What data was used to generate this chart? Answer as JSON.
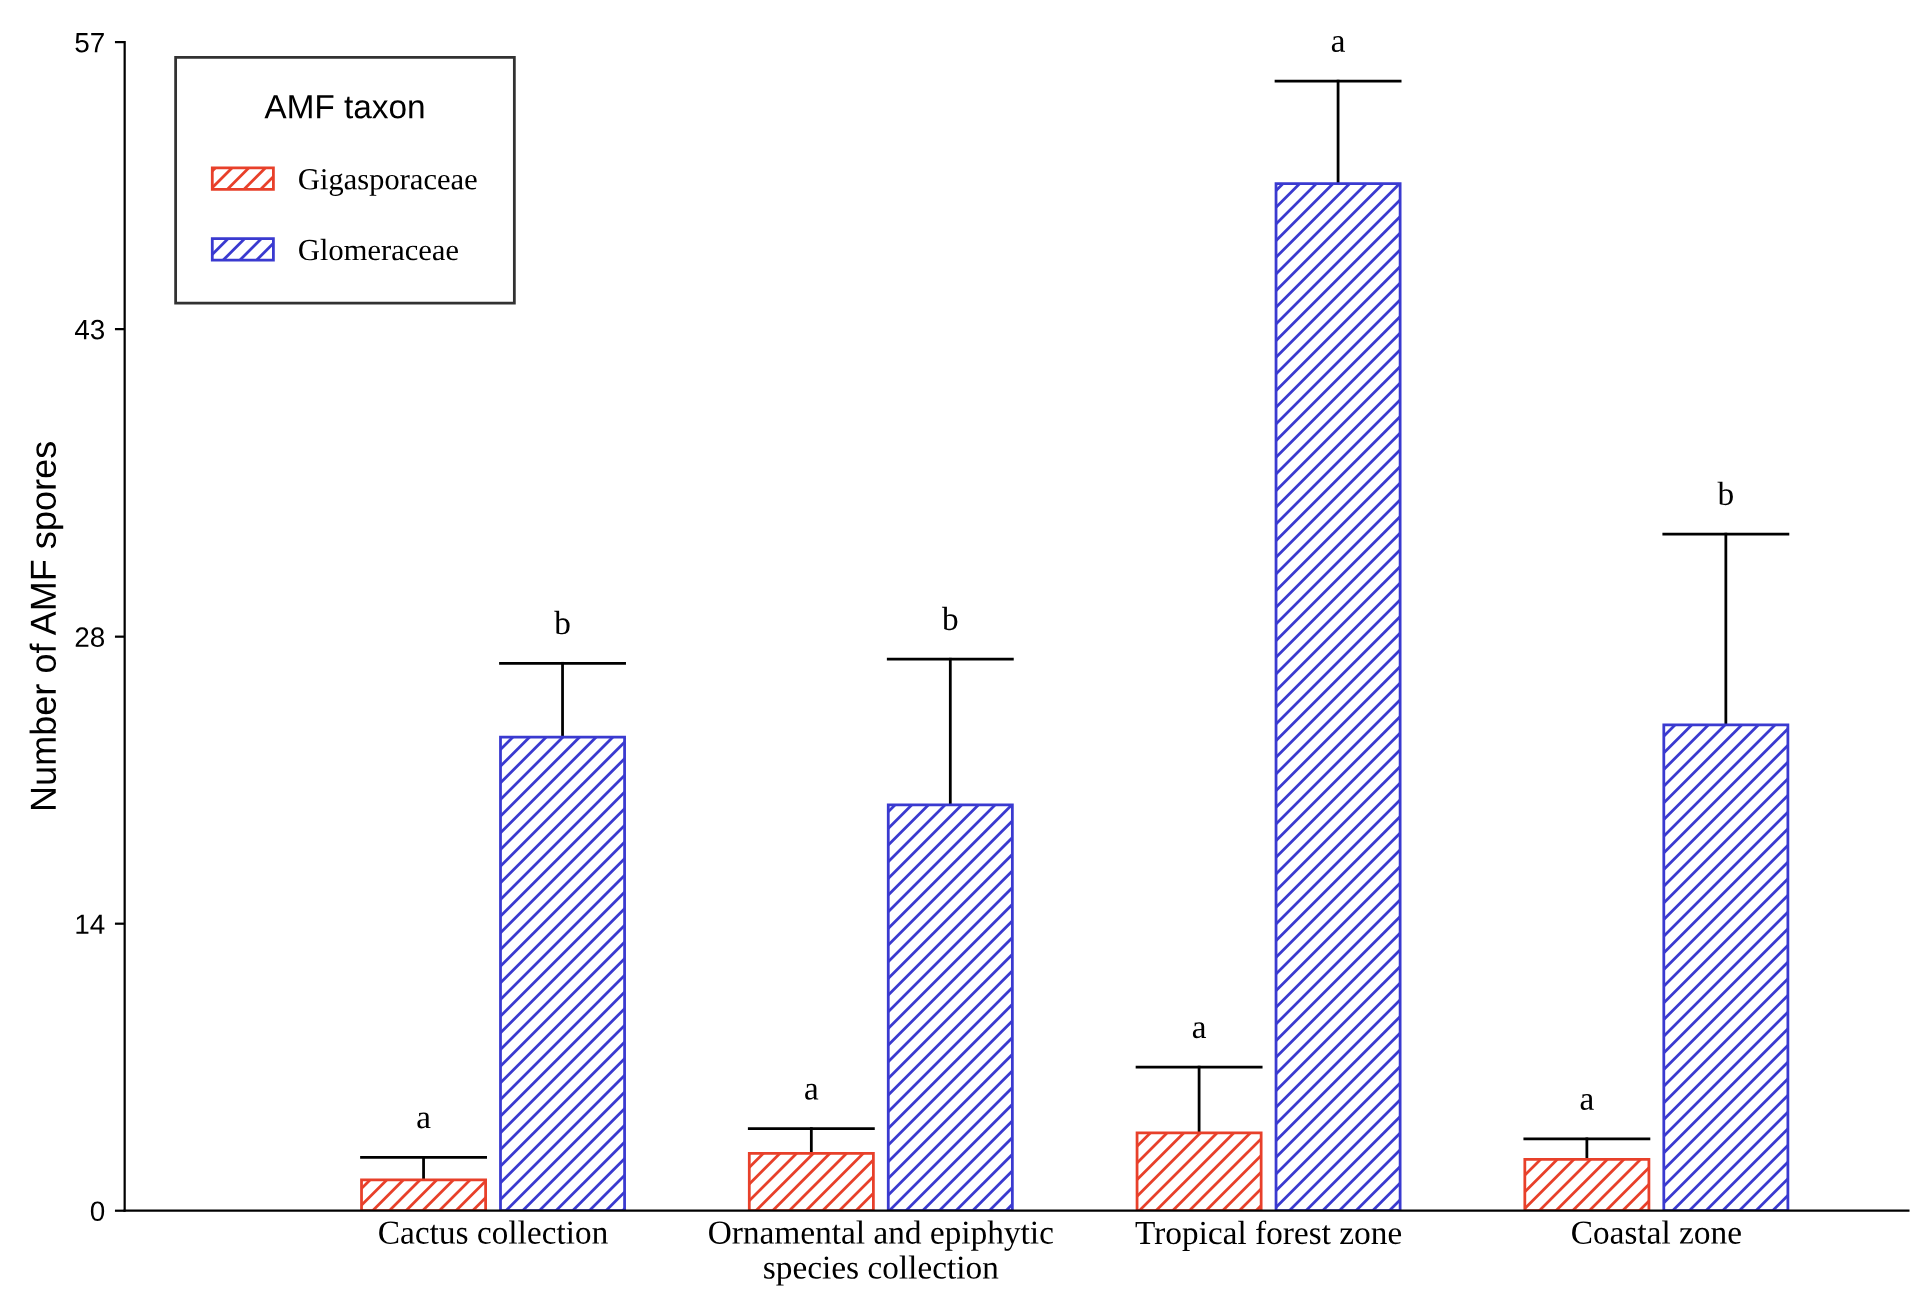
{
  "chart_data": {
    "type": "bar",
    "ylabel": "Number of AMF spores",
    "legend_title": "AMF taxon",
    "legend": "top left",
    "grid": false,
    "categories": [
      "Cactus collection",
      "Ornamental and epiphytic\nspecies collection",
      "Tropical forest zone",
      "Coastal zone"
    ],
    "series": [
      {
        "name": "Gigasporaceae",
        "color": "#e8402a",
        "values": [
          1.5,
          2.8,
          3.8,
          2.5
        ],
        "errors": [
          [
            1.5,
            2.6
          ],
          [
            2.8,
            4.0
          ],
          [
            3.8,
            7.0
          ],
          [
            2.5,
            3.5
          ]
        ]
      },
      {
        "name": "Glomeraceae",
        "color": "#3a3ad0",
        "values": [
          23.1,
          19.8,
          50.1,
          23.7
        ],
        "errors": [
          [
            23.1,
            26.7
          ],
          [
            19.8,
            26.9
          ],
          [
            50.1,
            55.1
          ],
          [
            23.7,
            33.0
          ]
        ]
      }
    ],
    "ylim": [
      0,
      57
    ],
    "yticks": [
      0,
      14,
      28,
      43,
      57
    ],
    "annotations": [
      "a",
      "b",
      "a",
      "b",
      "a",
      "a",
      "a",
      "b"
    ]
  }
}
